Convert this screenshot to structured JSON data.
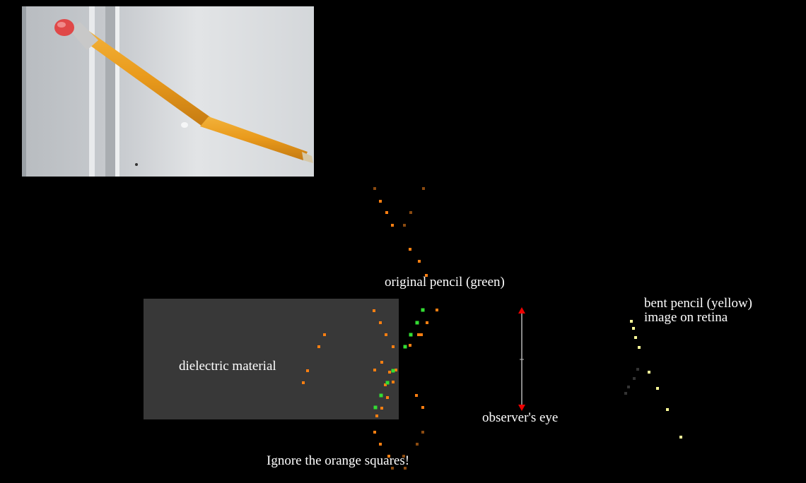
{
  "labels": {
    "dielectric": "dielectric material",
    "original_pencil": "original pencil (green)",
    "bent_pencil_line1": "bent pencil (yellow)",
    "bent_pencil_line2": "image on retina",
    "observer": "observer's eye",
    "ignore_note": "Ignore the orange squares!"
  },
  "colors": {
    "background": "#000000",
    "dielectric": "#383838",
    "green_marker": "#33dd33",
    "orange_marker": "#ff7f11",
    "dark_orange_marker": "#8a4a10",
    "yellow_marker": "#ffff99",
    "eye_arrow": "#ee0000",
    "eye_line": "#888888"
  },
  "photo": {
    "description_icon": "bent-pencil-in-water-photo"
  }
}
